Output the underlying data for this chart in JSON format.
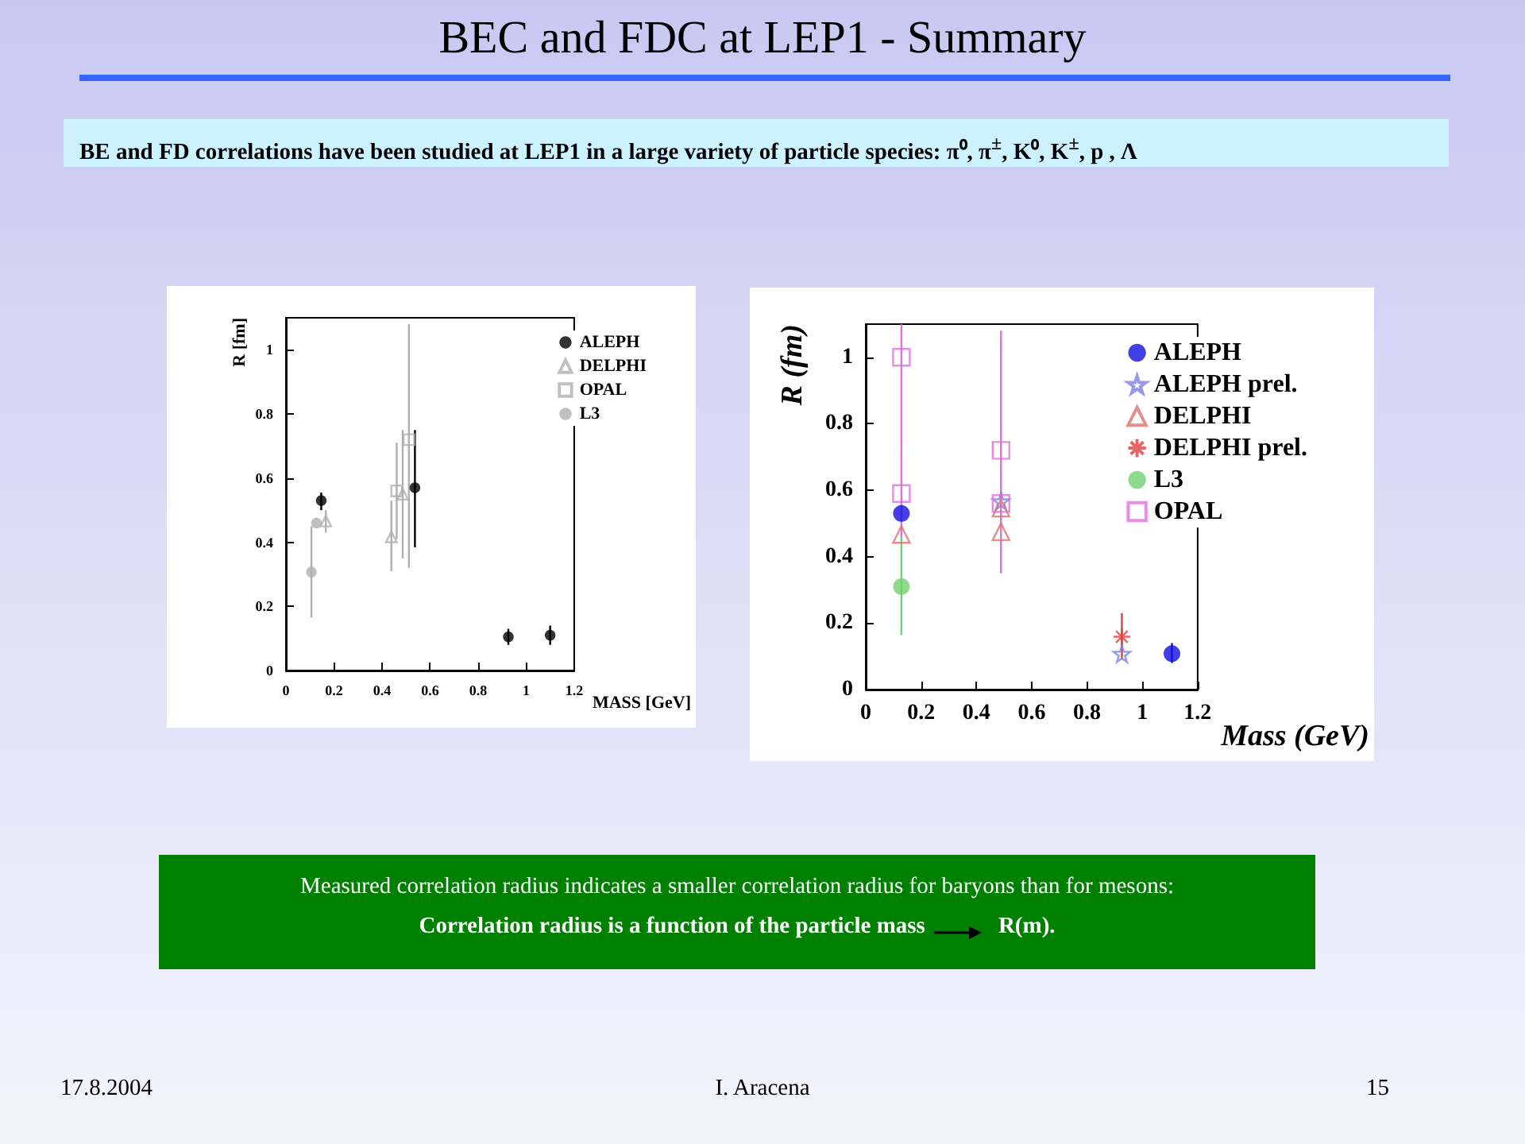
{
  "chart_data": [
    {
      "type": "other",
      "title": "BEC and FDC at LEP1 - Summary",
      "annotations": [
        "BE and FD correlations have been studied at LEP1 in a large variety of particle species:  π⁰, π$^{±}$, K⁰, K$^{±}$, p , Λ",
        "Measured correlation radius indicates a smaller correlation radius for baryons than for mesons:",
        "Correlation radius is a function of the particle mass",
        "R(m).",
        "17.8.2004",
        "I. Aracena",
        "15"
      ]
    },
    {
      "type": "scatter",
      "xlabel": "MASS [GeV]",
      "ylabel": "R [fm]",
      "xlim": [
        0,
        1.2
      ],
      "ylim": [
        0,
        1.1
      ],
      "xticks": [
        0,
        0.2,
        0.4,
        0.6,
        0.8,
        1,
        1.2
      ],
      "yticks": [
        0,
        0.2,
        0.4,
        0.6,
        0.8,
        1
      ],
      "grid": false,
      "legend": "top right",
      "series": [
        {
          "name": "ALEPH",
          "color": "#000000",
          "marker": "circle",
          "x": [
            0.147,
            0.537,
            0.926,
            1.1
          ],
          "values": [
            0.53,
            0.57,
            0.105,
            0.11
          ],
          "errors": [
            [
              0.5,
              0.555
            ],
            [
              0.384,
              0.75
            ],
            [
              0.08,
              0.13
            ],
            [
              0.08,
              0.14
            ]
          ]
        },
        {
          "name": "DELPHI",
          "color": "#b0b0b0",
          "marker": "triangle",
          "x": [
            0.166,
            0.439,
            0.486
          ],
          "values": [
            0.466,
            0.417,
            0.55
          ],
          "errors": [
            [
              0.43,
              0.5
            ],
            [
              0.31,
              0.53
            ],
            [
              0.35,
              0.75
            ]
          ]
        },
        {
          "name": "OPAL",
          "color": "#b0b0b0",
          "marker": "square",
          "x": [
            0.461,
            0.512
          ],
          "values": [
            0.56,
            0.72
          ],
          "errors": [
            [
              0.41,
              0.71
            ],
            [
              0.32,
              1.08
            ]
          ]
        },
        {
          "name": "L3",
          "color": "#b0b0b0",
          "marker": "circle",
          "x": [
            0.106,
            0.127
          ],
          "values": [
            0.307,
            0.46
          ],
          "errors": [
            [
              0.165,
              0.45
            ],
            null
          ]
        }
      ]
    },
    {
      "type": "scatter",
      "xlabel": "Mass (GeV)",
      "ylabel": "R (fm)",
      "xlim": [
        0,
        1.2
      ],
      "ylim": [
        0,
        1.1
      ],
      "xticks": [
        0,
        0.2,
        0.4,
        0.6,
        0.8,
        1,
        1.2
      ],
      "yticks": [
        0,
        0.2,
        0.4,
        0.6,
        0.8,
        1
      ],
      "grid": false,
      "legend": "top right",
      "series": [
        {
          "name": "ALEPH",
          "color": "#1010e0",
          "marker": "circle",
          "x": [
            0.129,
            1.107
          ],
          "values": [
            0.53,
            0.108
          ],
          "errors": [
            null,
            [
              0.08,
              0.14
            ]
          ]
        },
        {
          "name": "ALEPH prel.",
          "color": "#8080e0",
          "marker": "star",
          "x": [
            0.489,
            0.926
          ],
          "values": [
            0.567,
            0.108
          ],
          "errors": [
            null,
            null
          ]
        },
        {
          "name": "DELPHI",
          "color": "#e07070",
          "marker": "triangle",
          "x": [
            0.129,
            0.489,
            0.489
          ],
          "values": [
            0.467,
            0.475,
            0.546
          ],
          "errors": [
            null,
            null,
            null
          ]
        },
        {
          "name": "DELPHI prel.",
          "color": "#e04040",
          "marker": "cross",
          "x": [
            0.926
          ],
          "values": [
            0.159
          ],
          "errors": [
            [
              0.09,
              0.23
            ]
          ]
        },
        {
          "name": "L3",
          "color": "#70d070",
          "marker": "circle",
          "x": [
            0.129
          ],
          "values": [
            0.31
          ],
          "errors": [
            [
              0.164,
              0.475
            ]
          ]
        },
        {
          "name": "OPAL",
          "color": "#e070e0",
          "marker": "square",
          "x": [
            0.129,
            0.129,
            0.489,
            0.489
          ],
          "values": [
            1.0,
            0.59,
            0.72,
            0.56
          ],
          "errors": [
            [
              0.72,
              1.1
            ],
            [
              0.46,
              0.72
            ],
            [
              0.35,
              1.08
            ],
            null
          ]
        }
      ]
    }
  ]
}
